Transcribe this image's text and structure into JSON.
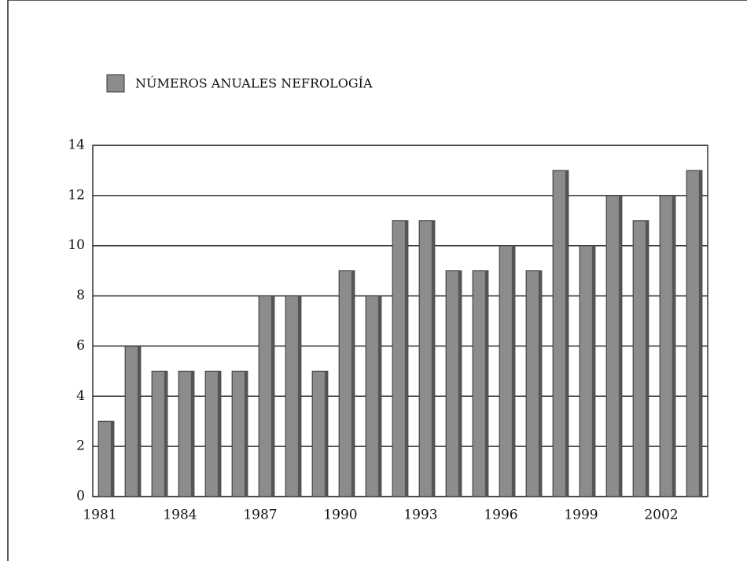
{
  "chart_data": {
    "type": "bar",
    "legend": "NÚMEROS ANUALES NEFROLOGÍA",
    "categories": [
      "1981",
      null,
      null,
      "1984",
      null,
      null,
      "1987",
      null,
      null,
      "1990",
      null,
      null,
      "1993",
      null,
      null,
      "1996",
      null,
      null,
      "1999",
      null,
      null,
      "2002",
      null
    ],
    "values": [
      3,
      6,
      5,
      5,
      5,
      5,
      8,
      8,
      5,
      9,
      8,
      11,
      11,
      9,
      9,
      10,
      9,
      13,
      10,
      12,
      11,
      12,
      13
    ],
    "color": "#8c8c8c",
    "ylim": [
      0,
      14
    ],
    "yticks": [
      0,
      2,
      4,
      6,
      8,
      10,
      12,
      14
    ],
    "grid": true
  }
}
